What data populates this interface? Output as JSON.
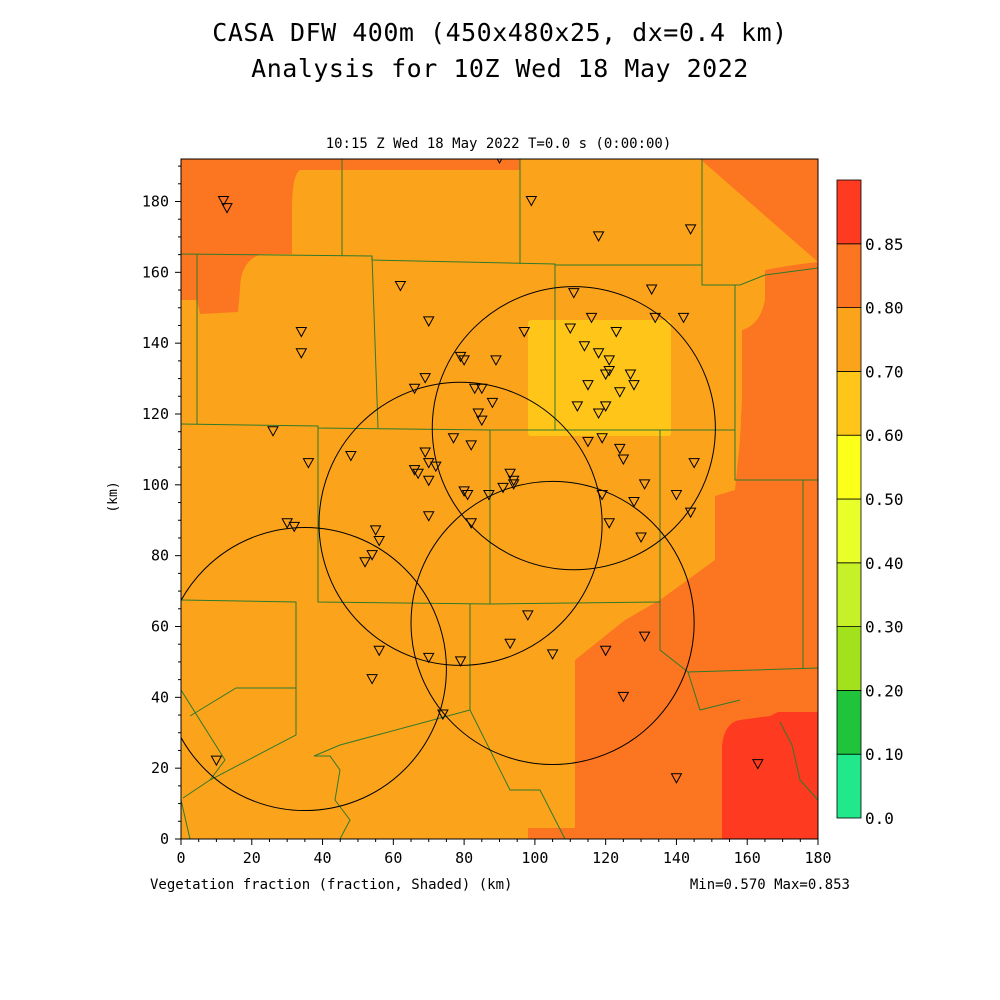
{
  "title_line1": "CASA DFW 400m (450x480x25, dx=0.4 km)",
  "title_line2": "Analysis for 10Z Wed 18 May 2022",
  "subtitle": "10:15 Z Wed 18 May 2022    T=0.0 s (0:00:00)",
  "bottom_left": "Vegetation fraction (fraction, Shaded)  (km)",
  "bottom_right": "Min=0.570 Max=0.853",
  "axis_unit_label": "(km)",
  "x_ticks": [
    "0",
    "20",
    "40",
    "60",
    "80",
    "100",
    "120",
    "140",
    "160",
    "180"
  ],
  "y_ticks": [
    "0",
    "20",
    "40",
    "60",
    "80",
    "100",
    "120",
    "140",
    "160",
    "180"
  ],
  "colorbar": {
    "labels": [
      "0.0",
      "0.10",
      "0.20",
      "0.30",
      "0.40",
      "0.50",
      "0.60",
      "0.70",
      "0.80",
      "0.85"
    ],
    "colors": [
      "#22e88c",
      "#1fc43a",
      "#a2e21c",
      "#c6f028",
      "#e8ff2a",
      "#fcff1a",
      "#ffc619",
      "#fca31c",
      "#fc7520",
      "#fe3a20"
    ]
  },
  "fill_colors": {
    "bg": "#fca31c",
    "high": "#fc7520",
    "low": "#ffc619",
    "max": "#fe3a20",
    "lines": "#2e7a2a"
  },
  "chart_data": {
    "type": "heatmap",
    "xlim": [
      0,
      180
    ],
    "ylim": [
      0,
      192
    ],
    "units": "km",
    "field_min": 0.57,
    "field_max": 0.853,
    "radar_rings_km": [
      {
        "cx": 35,
        "cy": 48,
        "r": 40
      },
      {
        "cx": 79,
        "cy": 89,
        "r": 40
      },
      {
        "cx": 105,
        "cy": 61,
        "r": 40
      },
      {
        "cx": 111,
        "cy": 116,
        "r": 40
      }
    ],
    "stations": [
      [
        12,
        180
      ],
      [
        13,
        178
      ],
      [
        90,
        192
      ],
      [
        99,
        180
      ],
      [
        118,
        170
      ],
      [
        144,
        172
      ],
      [
        62,
        156
      ],
      [
        34,
        143
      ],
      [
        34,
        137
      ],
      [
        70,
        146
      ],
      [
        111,
        154
      ],
      [
        133,
        155
      ],
      [
        134,
        147
      ],
      [
        142,
        147
      ],
      [
        116,
        147
      ],
      [
        97,
        143
      ],
      [
        110,
        144
      ],
      [
        123,
        143
      ],
      [
        114,
        139
      ],
      [
        118,
        137
      ],
      [
        121,
        135
      ],
      [
        79,
        136
      ],
      [
        80,
        135
      ],
      [
        89,
        135
      ],
      [
        121,
        132
      ],
      [
        120,
        131
      ],
      [
        127,
        131
      ],
      [
        128,
        128
      ],
      [
        69,
        130
      ],
      [
        66,
        127
      ],
      [
        83,
        127
      ],
      [
        85,
        127
      ],
      [
        115,
        128
      ],
      [
        124,
        126
      ],
      [
        88,
        123
      ],
      [
        112,
        122
      ],
      [
        120,
        122
      ],
      [
        118,
        120
      ],
      [
        84,
        120
      ],
      [
        85,
        118
      ],
      [
        26,
        115
      ],
      [
        77,
        113
      ],
      [
        82,
        111
      ],
      [
        115,
        112
      ],
      [
        119,
        113
      ],
      [
        124,
        110
      ],
      [
        125,
        107
      ],
      [
        48,
        108
      ],
      [
        36,
        106
      ],
      [
        69,
        109
      ],
      [
        70,
        106
      ],
      [
        72,
        105
      ],
      [
        66,
        104
      ],
      [
        67,
        103
      ],
      [
        70,
        101
      ],
      [
        93,
        103
      ],
      [
        94,
        101
      ],
      [
        94,
        100
      ],
      [
        91,
        99
      ],
      [
        80,
        98
      ],
      [
        81,
        97
      ],
      [
        87,
        97
      ],
      [
        119,
        97
      ],
      [
        131,
        100
      ],
      [
        140,
        97
      ],
      [
        144,
        92
      ],
      [
        145,
        106
      ],
      [
        30,
        89
      ],
      [
        32,
        88
      ],
      [
        70,
        91
      ],
      [
        82,
        89
      ],
      [
        128,
        95
      ],
      [
        121,
        89
      ],
      [
        130,
        85
      ],
      [
        55,
        87
      ],
      [
        56,
        84
      ],
      [
        54,
        80
      ],
      [
        52,
        78
      ],
      [
        98,
        63
      ],
      [
        131,
        57
      ],
      [
        93,
        55
      ],
      [
        120,
        53
      ],
      [
        56,
        53
      ],
      [
        70,
        51
      ],
      [
        79,
        50
      ],
      [
        105,
        52
      ],
      [
        54,
        45
      ],
      [
        125,
        40
      ],
      [
        74,
        35
      ],
      [
        10,
        22
      ],
      [
        140,
        17
      ],
      [
        163,
        21
      ]
    ]
  }
}
